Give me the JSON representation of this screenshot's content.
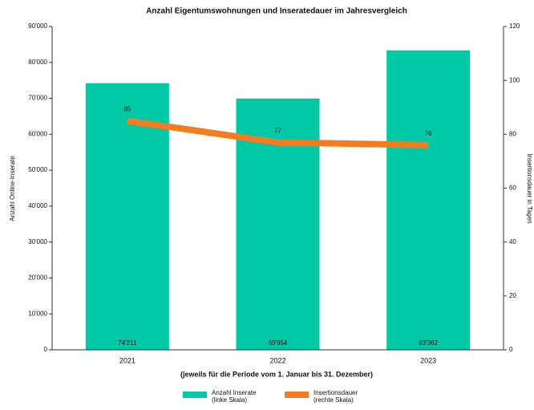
{
  "chart_data": {
    "type": "bar",
    "title": "Anzahl Eigentumswohnungen und Inseratedauer im Jahresvergleich",
    "x_label": "(jeweils für die Periode vom 1. Januar bis 31. Dezember)",
    "y_label": "Anzahl Online-Inserate",
    "y2_label": "Insertionsdauer in Tagen",
    "categories": [
      "2021",
      "2022",
      "2023"
    ],
    "series": [
      {
        "name": "Anzahl Inserate (linke Skala)",
        "type": "bar",
        "color": "#00c9a7",
        "values": [
          74211,
          69954,
          83362
        ],
        "value_labels": [
          "74'211",
          "69'954",
          "83'362"
        ]
      },
      {
        "name": "Insertionsdauer (rechte Skala)",
        "type": "line",
        "axis": "y2",
        "color": "#f47c20",
        "values": [
          85,
          77,
          76
        ]
      }
    ],
    "ylim": [
      0,
      90000
    ],
    "yticks": [
      0,
      {
        "value": 10000,
        "label": "10'000"
      },
      {
        "value": 20000,
        "label": "20'000"
      },
      {
        "value": 30000,
        "label": "30'000"
      },
      {
        "value": 40000,
        "label": "40'000"
      },
      {
        "value": 50000,
        "label": "50'000"
      },
      {
        "value": 60000,
        "label": "60'000"
      },
      {
        "value": 70000,
        "label": "70'000"
      },
      {
        "value": 80000,
        "label": "80'000"
      },
      {
        "value": 90000,
        "label": "90'000"
      }
    ],
    "y2lim": [
      0,
      120
    ],
    "y2ticks": [
      0,
      20,
      40,
      60,
      80,
      100,
      120
    ]
  }
}
